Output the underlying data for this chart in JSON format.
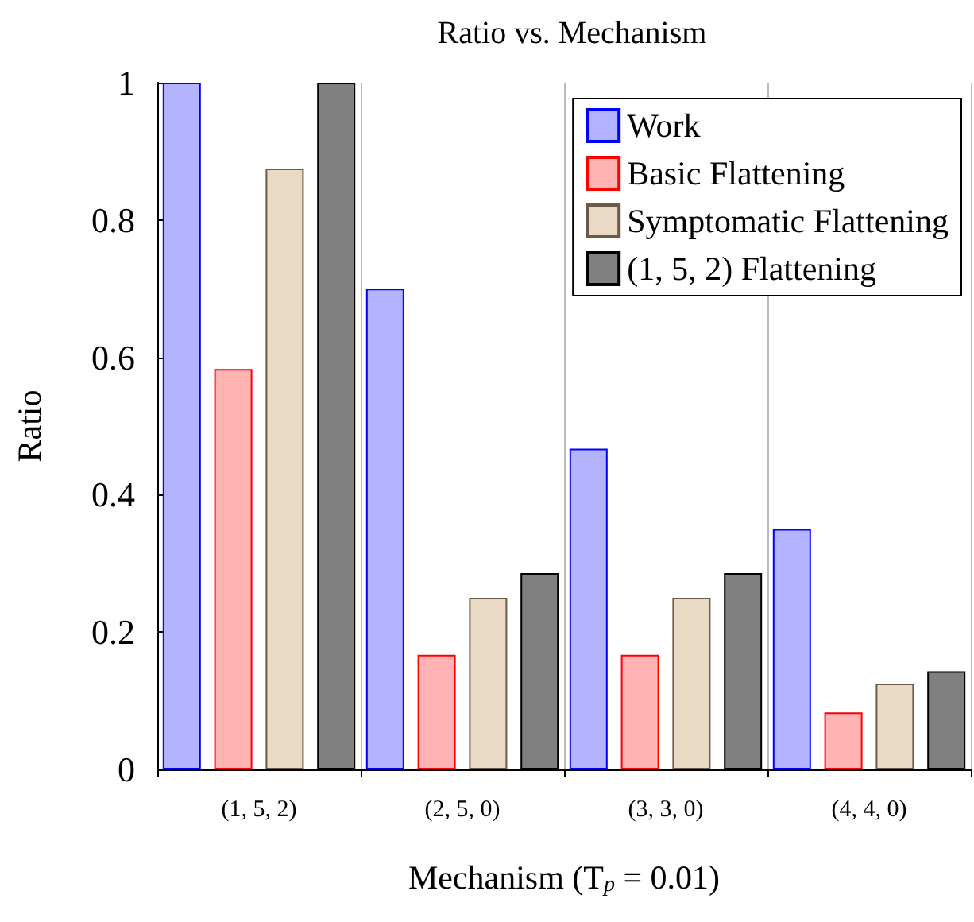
{
  "chart_data": {
    "type": "bar",
    "title": "Ratio vs. Mechanism",
    "xlabel": "Mechanism (T$_{p}$ = 0.01)",
    "ylabel": "Ratio",
    "categories": [
      "(1, 5, 2)",
      "(2, 5, 0)",
      "(3, 3, 0)",
      "(4, 4, 0)"
    ],
    "series": [
      {
        "name": "Work",
        "color": "#b3b3ff",
        "values": [
          1,
          0.7,
          0.467,
          0.35
        ]
      },
      {
        "name": "Basic Flattening",
        "color": "#ffb3b3",
        "values": [
          0.583,
          0.167,
          0.167,
          0.083
        ]
      },
      {
        "name": "Symptomatic Flattening",
        "color": "#ead9c4",
        "values": [
          0.875,
          0.25,
          0.25,
          0.125
        ]
      },
      {
        "name": "(1, 5, 2) Flattening",
        "color": "#808080",
        "values": [
          1,
          0.286,
          0.286,
          0.143
        ]
      }
    ],
    "ylim": [
      0,
      1
    ],
    "yticks": [
      0,
      0.2,
      0.4,
      0.6,
      0.8,
      1
    ],
    "grid": "x",
    "legend": "top right"
  }
}
